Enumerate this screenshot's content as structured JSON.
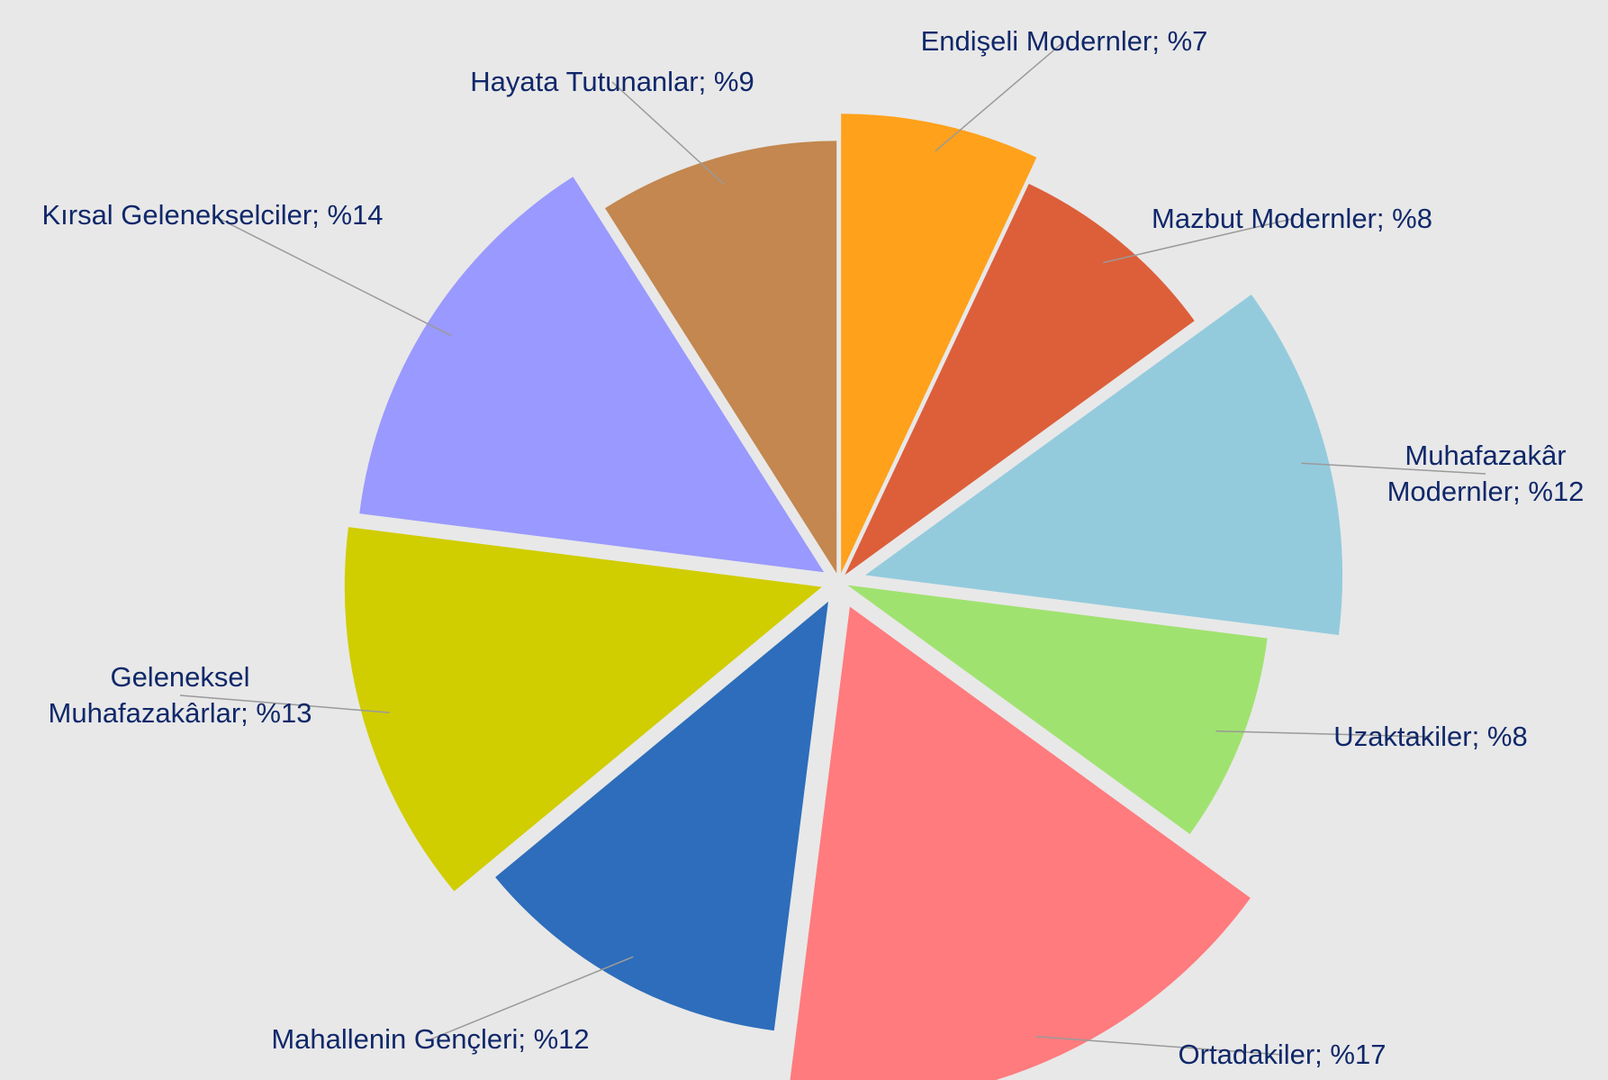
{
  "chart_data": {
    "type": "pie",
    "categories": [
      "Endişeli Modernler",
      "Mazbut Modernler",
      "Muhafazakâr Modernler",
      "Uzaktakiler",
      "Ortadakiler",
      "Mahallenin Gençleri",
      "Geleneksel Muhafazakârlar",
      "Kırsal Gelenekselciler",
      "Hayata Tutunanlar"
    ],
    "values": [
      7,
      8,
      12,
      8,
      17,
      12,
      13,
      14,
      9
    ],
    "value_labels": [
      "%7",
      "%8",
      "%12",
      "%8",
      "%17",
      "%12",
      "%13",
      "%14",
      "%9"
    ],
    "label_separator": ";",
    "colors": [
      "#ffa11a",
      "#dc5f3a",
      "#93cbdd",
      "#a0e270",
      "#ff7b7e",
      "#2d6dbb",
      "#d0cd00",
      "#9999ff",
      "#c3874f"
    ]
  }
}
